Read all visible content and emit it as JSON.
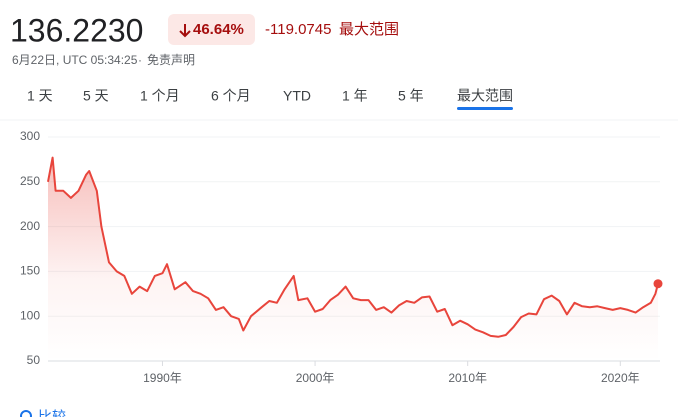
{
  "header": {
    "price": "136.2230",
    "change_percent": "46.64%",
    "change": "-119.0745",
    "range": "最大范围",
    "timestamp": "6月22日, UTC 05:34:25",
    "disclaimer": "免责声明"
  },
  "tabs": [
    "1 天",
    "5 天",
    "1 个月",
    "6 个月",
    "YTD",
    "1 年",
    "5 年",
    "最大范围"
  ],
  "selected_tab": 7,
  "compare": "比较",
  "chart_data": {
    "type": "line",
    "color": "#e8453c",
    "grid": true,
    "xlim": [
      1982.5,
      2022.47
    ],
    "ylim": [
      50,
      300
    ],
    "yticks": [
      50,
      100,
      150,
      200,
      250,
      300
    ],
    "xticks": [
      {
        "value": 1990,
        "label": "1990年"
      },
      {
        "value": 2000,
        "label": "2000年"
      },
      {
        "value": 2010,
        "label": "2010年"
      },
      {
        "value": 2020,
        "label": "2020年"
      }
    ],
    "x": [
      1982.5,
      1982.8,
      1983.0,
      1983.5,
      1984.0,
      1984.5,
      1985.0,
      1985.2,
      1985.7,
      1986.0,
      1986.5,
      1987.0,
      1987.5,
      1988.0,
      1988.5,
      1989.0,
      1989.5,
      1990.0,
      1990.3,
      1990.8,
      1991.5,
      1992.0,
      1992.5,
      1993.0,
      1993.5,
      1994.0,
      1994.5,
      1995.0,
      1995.3,
      1995.8,
      1996.5,
      1997.0,
      1997.5,
      1998.0,
      1998.6,
      1998.9,
      1999.5,
      2000.0,
      2000.5,
      2001.0,
      2001.5,
      2002.0,
      2002.5,
      2003.0,
      2003.5,
      2004.0,
      2004.5,
      2005.0,
      2005.5,
      2006.0,
      2006.5,
      2007.0,
      2007.5,
      2008.0,
      2008.5,
      2009.0,
      2009.5,
      2010.0,
      2010.5,
      2011.0,
      2011.5,
      2012.0,
      2012.5,
      2013.0,
      2013.5,
      2014.0,
      2014.5,
      2015.0,
      2015.5,
      2016.0,
      2016.5,
      2017.0,
      2017.5,
      2018.0,
      2018.5,
      2019.0,
      2019.5,
      2020.0,
      2020.5,
      2021.0,
      2021.5,
      2022.0,
      2022.3,
      2022.47
    ],
    "values": [
      250,
      277,
      240,
      240,
      232,
      240,
      258,
      262,
      240,
      200,
      160,
      150,
      145,
      125,
      133,
      128,
      145,
      148,
      158,
      130,
      138,
      128,
      125,
      120,
      107,
      110,
      100,
      97,
      84,
      100,
      110,
      117,
      115,
      130,
      145,
      118,
      120,
      105,
      108,
      118,
      124,
      133,
      120,
      118,
      118,
      107,
      110,
      104,
      112,
      117,
      115,
      121,
      122,
      105,
      108,
      90,
      95,
      91,
      85,
      82,
      78,
      77,
      79,
      88,
      99,
      103,
      102,
      119,
      123,
      117,
      102,
      115,
      111,
      110,
      111,
      109,
      107,
      109,
      107,
      104,
      110,
      115,
      125,
      136.223
    ]
  }
}
